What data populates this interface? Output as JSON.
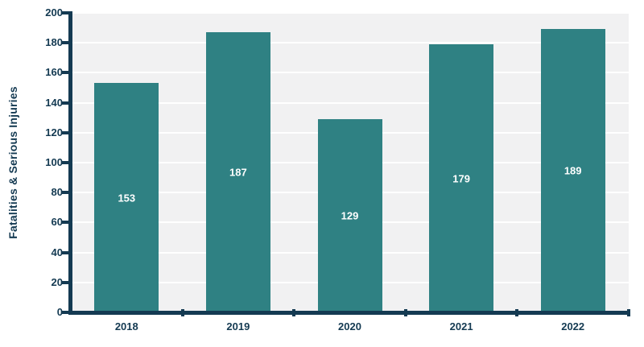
{
  "chart_data": {
    "type": "bar",
    "categories": [
      "2018",
      "2019",
      "2020",
      "2021",
      "2022"
    ],
    "values": [
      153,
      187,
      129,
      179,
      189
    ],
    "title": "",
    "xlabel": "",
    "ylabel": "Fatalities & Serious Injuries",
    "ylim": [
      0,
      200
    ],
    "yticks": [
      0,
      20,
      40,
      60,
      80,
      100,
      120,
      140,
      160,
      180,
      200
    ],
    "grid": "horizontal",
    "legend_position": "none",
    "value_labels": "centered inside bars",
    "colors": {
      "bar": "#2f8183",
      "axis": "#143a52",
      "tick_text": "#143a52",
      "value_label_text": "#ffffff",
      "plot_background": "#f1f1f2",
      "gridline": "#ffffff",
      "page_background": "#ffffff"
    }
  }
}
